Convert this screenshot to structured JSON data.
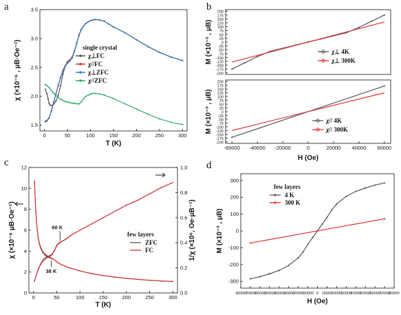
{
  "chart_data": [
    {
      "panel": "a",
      "type": "line",
      "xlabel": "T (K)",
      "ylabel": "χ (×10⁻⁶ , μB·Oe⁻¹)",
      "xlim": [
        -10,
        310
      ],
      "ylim": [
        1.4,
        3.5
      ],
      "xticks": [
        0,
        50,
        100,
        150,
        200,
        250,
        300
      ],
      "yticks": [
        1.5,
        2.0,
        2.5,
        3.0,
        3.5
      ],
      "ytick_labels": [
        "1.5",
        "2.0",
        "2.5",
        "3.0",
        "3.5"
      ],
      "legend_title": "single crystal",
      "legend_position": "upper-middle",
      "series": [
        {
          "name": "χ⊥FC",
          "color": "#555555",
          "x": [
            2,
            5,
            8,
            10,
            12,
            15,
            20,
            25,
            30,
            35,
            40,
            45,
            50,
            55,
            60,
            65,
            70,
            75,
            80,
            85,
            90,
            95,
            100,
            105,
            110,
            120,
            130,
            140,
            150,
            175,
            200,
            225,
            250,
            275,
            300
          ],
          "y": [
            2.12,
            2.05,
            1.95,
            1.88,
            1.85,
            1.84,
            1.86,
            1.92,
            2.02,
            2.18,
            2.38,
            2.52,
            2.6,
            2.63,
            2.68,
            2.78,
            2.92,
            3.06,
            3.16,
            3.22,
            3.26,
            3.29,
            3.31,
            3.32,
            3.33,
            3.32,
            3.3,
            3.25,
            3.2,
            3.1,
            2.98,
            2.86,
            2.76,
            2.68,
            2.62
          ]
        },
        {
          "name": "χ//FC",
          "color": "#e03030",
          "x": [
            2,
            5,
            10,
            15,
            20,
            25,
            30,
            35,
            40,
            45,
            50,
            55,
            60,
            65,
            70,
            75,
            80,
            85,
            90,
            95,
            100,
            110,
            120,
            130,
            150,
            175,
            200,
            225,
            250,
            275,
            300
          ],
          "y": [
            1.57,
            1.58,
            1.63,
            1.75,
            1.9,
            2.05,
            2.2,
            2.33,
            2.45,
            2.53,
            2.58,
            2.62,
            2.67,
            2.78,
            2.92,
            3.06,
            3.16,
            3.22,
            3.26,
            3.29,
            3.31,
            3.33,
            3.32,
            3.3,
            3.2,
            3.1,
            2.98,
            2.86,
            2.76,
            2.68,
            2.62
          ]
        },
        {
          "name": "χ⊥ZFC",
          "color": "#2e7fc0",
          "x": [
            2,
            5,
            10,
            15,
            20,
            25,
            30,
            35,
            40,
            45,
            50,
            55,
            60,
            65,
            70,
            75,
            80,
            85,
            90,
            95,
            100,
            110,
            120,
            130,
            150,
            175,
            200,
            225,
            250,
            275,
            300
          ],
          "y": [
            1.56,
            1.57,
            1.62,
            1.74,
            1.89,
            2.04,
            2.19,
            2.32,
            2.44,
            2.52,
            2.57,
            2.61,
            2.66,
            2.77,
            2.91,
            3.05,
            3.15,
            3.22,
            3.26,
            3.29,
            3.31,
            3.33,
            3.32,
            3.3,
            3.2,
            3.1,
            2.98,
            2.86,
            2.76,
            2.68,
            2.62
          ]
        },
        {
          "name": "χ//ZFC",
          "color": "#2eaa6a",
          "x": [
            2,
            5,
            10,
            15,
            20,
            25,
            30,
            35,
            40,
            45,
            50,
            55,
            60,
            65,
            70,
            75,
            80,
            85,
            90,
            95,
            100,
            105,
            110,
            120,
            130,
            150,
            175,
            200,
            225,
            250,
            275,
            300
          ],
          "y": [
            2.2,
            2.19,
            2.15,
            2.1,
            2.05,
            2.01,
            1.98,
            1.95,
            1.93,
            1.91,
            1.9,
            1.89,
            1.88,
            1.88,
            1.87,
            1.87,
            1.9,
            1.96,
            2.0,
            2.02,
            2.04,
            2.05,
            2.05,
            2.04,
            2.02,
            1.96,
            1.87,
            1.78,
            1.69,
            1.61,
            1.55,
            1.51
          ]
        }
      ]
    },
    {
      "panel": "b-top",
      "type": "line",
      "ylabel": "M (×10⁻³ , μB)",
      "xlim": [
        -65000,
        65000
      ],
      "ylim": [
        -210,
        210
      ],
      "yticks": [
        -200,
        -175,
        -150,
        -125,
        -100,
        -75,
        -50,
        -25,
        0,
        25,
        50,
        75,
        100,
        125,
        150,
        175,
        200
      ],
      "series": [
        {
          "name": "χ⊥  4K",
          "color": "#555555",
          "x": [
            -60000,
            -50000,
            -40000,
            -30000,
            -20000,
            -10000,
            0,
            10000,
            20000,
            30000,
            40000,
            50000,
            60000
          ],
          "y": [
            -175,
            -135,
            -95,
            -60,
            -40,
            -20,
            0,
            20,
            40,
            60,
            95,
            135,
            175
          ]
        },
        {
          "name": "χ⊥  300K",
          "color": "#e03030",
          "x": [
            -60000,
            60000
          ],
          "y": [
            -130,
            130
          ]
        }
      ]
    },
    {
      "panel": "b-bottom",
      "type": "line",
      "xlabel": "H (Oe)",
      "ylabel": "M (×10⁻³ , μB)",
      "xlim": [
        -65000,
        65000
      ],
      "ylim": [
        -210,
        210
      ],
      "xticks": [
        -60000,
        -40000,
        -20000,
        0,
        20000,
        40000,
        60000
      ],
      "yticks": [
        -200,
        -175,
        -150,
        -125,
        -100,
        -75,
        -50,
        -25,
        0,
        25,
        50,
        75,
        100,
        125,
        150,
        175,
        200
      ],
      "series": [
        {
          "name": "χ//  4K",
          "color": "#555555",
          "x": [
            -60000,
            60000
          ],
          "y": [
            -170,
            170
          ]
        },
        {
          "name": "χ//  300K",
          "color": "#e03030",
          "x": [
            -60000,
            60000
          ],
          "y": [
            -125,
            125
          ]
        }
      ]
    },
    {
      "panel": "c",
      "type": "line",
      "xlabel": "T (K)",
      "ylabel": "χ (×10⁻⁶ μB·Oe⁻¹)",
      "y2label": "1/χ (×10⁶, Oe·μB⁻¹)",
      "xlim": [
        -10,
        310
      ],
      "ylim": [
        0,
        12
      ],
      "y2lim": [
        0,
        1.0
      ],
      "xticks": [
        0,
        50,
        100,
        150,
        200,
        250,
        300
      ],
      "yticks": [
        0,
        2,
        4,
        6,
        8,
        10,
        12
      ],
      "y2ticks": [
        0.0,
        0.2,
        0.4,
        0.6,
        0.8,
        1.0
      ],
      "y2tick_labels": [
        "0.0",
        "0.2",
        "0.4",
        "0.6",
        "0.8",
        "1.0"
      ],
      "legend_title": "few layers",
      "legend_position": "middle-right",
      "annotations": [
        "60 K",
        "38 K"
      ],
      "series": [
        {
          "name": "ZFC",
          "color": "#555555",
          "axis": "left",
          "x": [
            2,
            3,
            4,
            5,
            6,
            8,
            10,
            12,
            15,
            20,
            25,
            30,
            35,
            38,
            40,
            45,
            50,
            55,
            60,
            70,
            80,
            100,
            125,
            150,
            175,
            200,
            225,
            250,
            275,
            300
          ],
          "y": [
            10.7,
            9.6,
            8.6,
            7.7,
            7.0,
            6.0,
            5.3,
            4.8,
            4.3,
            3.85,
            3.6,
            3.45,
            3.35,
            3.3,
            3.27,
            3.15,
            2.98,
            2.82,
            2.7,
            2.52,
            2.36,
            2.1,
            1.85,
            1.66,
            1.51,
            1.39,
            1.29,
            1.21,
            1.14,
            1.09
          ]
        },
        {
          "name": "FC",
          "color": "#e03030",
          "axis": "left",
          "x": [
            2,
            3,
            4,
            5,
            6,
            8,
            10,
            12,
            15,
            20,
            25,
            30,
            35,
            38,
            40,
            45,
            50,
            55,
            60,
            70,
            80,
            100,
            125,
            150,
            175,
            200,
            225,
            250,
            275,
            300
          ],
          "y": [
            10.7,
            9.7,
            8.7,
            7.8,
            7.1,
            6.1,
            5.4,
            4.9,
            4.4,
            3.95,
            3.7,
            3.55,
            3.42,
            3.34,
            3.29,
            3.16,
            2.99,
            2.83,
            2.71,
            2.53,
            2.37,
            2.11,
            1.86,
            1.67,
            1.52,
            1.4,
            1.3,
            1.22,
            1.15,
            1.1
          ]
        },
        {
          "name": "1/χ ZFC",
          "color": "#555555",
          "axis": "right",
          "x": [
            2,
            5,
            10,
            15,
            20,
            25,
            30,
            35,
            38,
            40,
            45,
            50,
            55,
            60,
            70,
            80,
            100,
            125,
            150,
            175,
            200,
            225,
            250,
            275,
            300
          ],
          "y": [
            0.093,
            0.13,
            0.19,
            0.23,
            0.26,
            0.28,
            0.29,
            0.298,
            0.303,
            0.31,
            0.34,
            0.38,
            0.4,
            0.41,
            0.43,
            0.46,
            0.5,
            0.55,
            0.6,
            0.65,
            0.7,
            0.74,
            0.79,
            0.84,
            0.88
          ]
        },
        {
          "name": "1/χ FC",
          "color": "#e03030",
          "axis": "right",
          "x": [
            2,
            5,
            10,
            15,
            20,
            25,
            30,
            35,
            38,
            40,
            45,
            50,
            55,
            60,
            70,
            80,
            100,
            125,
            150,
            175,
            200,
            225,
            250,
            275,
            300
          ],
          "y": [
            0.093,
            0.13,
            0.185,
            0.225,
            0.253,
            0.27,
            0.282,
            0.293,
            0.299,
            0.305,
            0.335,
            0.375,
            0.395,
            0.408,
            0.428,
            0.458,
            0.5,
            0.55,
            0.6,
            0.65,
            0.7,
            0.74,
            0.79,
            0.84,
            0.88
          ]
        }
      ]
    },
    {
      "panel": "d",
      "type": "line",
      "xlabel": "H (Oe)",
      "ylabel": "M (×10⁻³ , μB)",
      "xlim": [
        -80000,
        80000
      ],
      "ylim": [
        -340,
        340
      ],
      "xticks": [
        -80000,
        -70000,
        -60000,
        -50000,
        -40000,
        -30000,
        -20000,
        -10000,
        0,
        10000,
        20000,
        30000,
        40000,
        50000,
        60000,
        70000,
        80000
      ],
      "yticks": [
        -300,
        -200,
        -100,
        0,
        100,
        200,
        300
      ],
      "legend_title": "few layers",
      "legend_position": "upper-left",
      "series": [
        {
          "name": "4 K",
          "color": "#555555",
          "x": [
            -70000,
            -60000,
            -50000,
            -40000,
            -30000,
            -20000,
            -15000,
            -10000,
            -5000,
            0,
            5000,
            10000,
            15000,
            20000,
            30000,
            40000,
            50000,
            60000,
            70000
          ],
          "y": [
            -285,
            -272,
            -255,
            -235,
            -205,
            -160,
            -125,
            -80,
            -40,
            0,
            40,
            80,
            125,
            160,
            205,
            235,
            255,
            272,
            285
          ]
        },
        {
          "name": "300 K",
          "color": "#e03030",
          "x": [
            -70000,
            70000
          ],
          "y": [
            -72,
            72
          ]
        }
      ]
    }
  ],
  "panels": {
    "a": {
      "letter": "a"
    },
    "b": {
      "letter": "b"
    },
    "c": {
      "letter": "c"
    },
    "d": {
      "letter": "d"
    }
  },
  "labels": {
    "a_xlabel": "T (K)",
    "b_xlabel": "H (Oe)",
    "c_xlabel": "T (K)",
    "d_xlabel": "H (Oe)"
  }
}
